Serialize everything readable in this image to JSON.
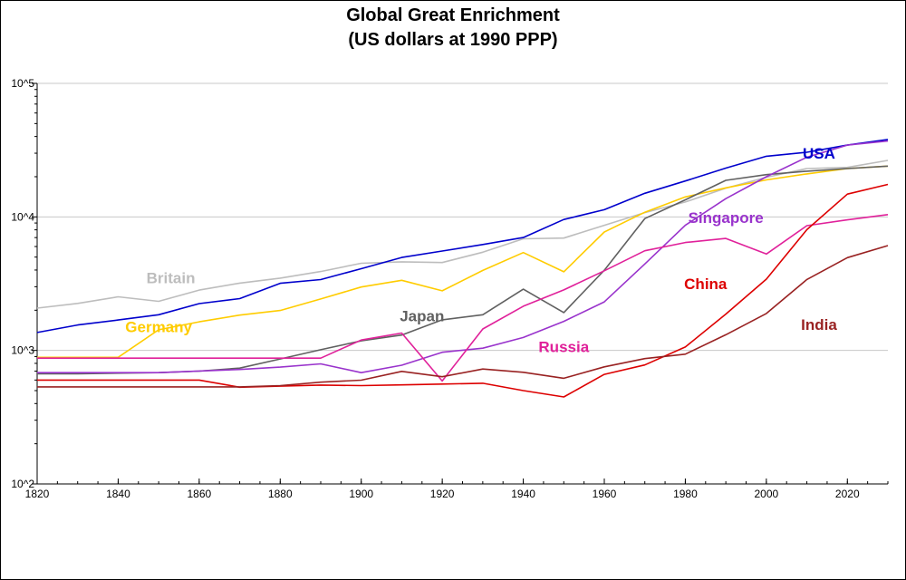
{
  "chart_data": {
    "type": "line",
    "title": "Global Great Enrichment",
    "subtitle": "(US dollars at 1990 PPP)",
    "yscale": "log",
    "ylim": [
      100,
      100000
    ],
    "xlim": [
      1820,
      2030
    ],
    "xticks": [
      1820,
      1840,
      1860,
      1880,
      1900,
      1920,
      1940,
      1960,
      1980,
      2000,
      2020
    ],
    "yticks": [
      {
        "value": 100,
        "label": "10^2"
      },
      {
        "value": 1000,
        "label": "10^3"
      },
      {
        "value": 10000,
        "label": "10^4"
      },
      {
        "value": 100000,
        "label": "10^5"
      }
    ],
    "grid": "horizontal at decades",
    "series": [
      {
        "name": "Britain",
        "color": "#bdbdbd",
        "label_year": 1853,
        "label_value": 3500,
        "points": [
          [
            1820,
            2074
          ],
          [
            1830,
            2250
          ],
          [
            1840,
            2521
          ],
          [
            1850,
            2330
          ],
          [
            1860,
            2830
          ],
          [
            1870,
            3190
          ],
          [
            1880,
            3477
          ],
          [
            1890,
            3900
          ],
          [
            1900,
            4492
          ],
          [
            1910,
            4611
          ],
          [
            1920,
            4548
          ],
          [
            1930,
            5441
          ],
          [
            1940,
            6856
          ],
          [
            1950,
            6939
          ],
          [
            1960,
            8645
          ],
          [
            1970,
            10767
          ],
          [
            1980,
            12931
          ],
          [
            1990,
            16430
          ],
          [
            2000,
            19817
          ],
          [
            2010,
            23000
          ],
          [
            2020,
            23500
          ],
          [
            2030,
            26500
          ]
        ]
      },
      {
        "name": "USA",
        "color": "#0000cc",
        "label_year": 2013,
        "label_value": 30000,
        "points": [
          [
            1820,
            1361
          ],
          [
            1830,
            1550
          ],
          [
            1840,
            1690
          ],
          [
            1850,
            1849
          ],
          [
            1860,
            2241
          ],
          [
            1870,
            2445
          ],
          [
            1880,
            3184
          ],
          [
            1890,
            3392
          ],
          [
            1900,
            4091
          ],
          [
            1910,
            4964
          ],
          [
            1920,
            5552
          ],
          [
            1930,
            6213
          ],
          [
            1940,
            7010
          ],
          [
            1950,
            9561
          ],
          [
            1960,
            11328
          ],
          [
            1970,
            15030
          ],
          [
            1980,
            18577
          ],
          [
            1990,
            23201
          ],
          [
            2000,
            28467
          ],
          [
            2010,
            30500
          ],
          [
            2020,
            34500
          ],
          [
            2030,
            38000
          ]
        ]
      },
      {
        "name": "Germany",
        "color": "#ffcc00",
        "label_year": 1850,
        "label_value": 1500,
        "points": [
          [
            1820,
            887
          ],
          [
            1840,
            887
          ],
          [
            1850,
            1428
          ],
          [
            1860,
            1639
          ],
          [
            1870,
            1839
          ],
          [
            1880,
            1991
          ],
          [
            1890,
            2428
          ],
          [
            1900,
            2985
          ],
          [
            1910,
            3348
          ],
          [
            1920,
            2796
          ],
          [
            1930,
            3973
          ],
          [
            1940,
            5403
          ],
          [
            1950,
            3881
          ],
          [
            1960,
            7705
          ],
          [
            1970,
            10839
          ],
          [
            1980,
            14114
          ],
          [
            1990,
            16500
          ],
          [
            2000,
            18944
          ],
          [
            2010,
            21000
          ],
          [
            2020,
            23000
          ],
          [
            2030,
            24000
          ]
        ]
      },
      {
        "name": "Japan",
        "color": "#606060",
        "label_year": 1915,
        "label_value": 1820,
        "points": [
          [
            1820,
            669
          ],
          [
            1830,
            669
          ],
          [
            1850,
            681
          ],
          [
            1860,
            700
          ],
          [
            1870,
            737
          ],
          [
            1880,
            863
          ],
          [
            1890,
            1012
          ],
          [
            1900,
            1180
          ],
          [
            1910,
            1304
          ],
          [
            1920,
            1696
          ],
          [
            1930,
            1850
          ],
          [
            1940,
            2874
          ],
          [
            1950,
            1921
          ],
          [
            1960,
            3986
          ],
          [
            1970,
            9714
          ],
          [
            1980,
            13428
          ],
          [
            1990,
            18789
          ],
          [
            2000,
            20738
          ],
          [
            2010,
            22000
          ],
          [
            2020,
            23000
          ],
          [
            2030,
            24000
          ]
        ]
      },
      {
        "name": "Singapore",
        "color": "#9933cc",
        "label_year": 1990,
        "label_value": 9900,
        "points": [
          [
            1820,
            682
          ],
          [
            1850,
            682
          ],
          [
            1870,
            720
          ],
          [
            1880,
            750
          ],
          [
            1890,
            793
          ],
          [
            1900,
            682
          ],
          [
            1910,
            775
          ],
          [
            1920,
            968
          ],
          [
            1930,
            1040
          ],
          [
            1940,
            1250
          ],
          [
            1950,
            1651
          ],
          [
            1960,
            2310
          ],
          [
            1970,
            4439
          ],
          [
            1980,
            8652
          ],
          [
            1990,
            13700
          ],
          [
            2000,
            20000
          ],
          [
            2010,
            28000
          ],
          [
            2020,
            34500
          ],
          [
            2030,
            37000
          ]
        ]
      },
      {
        "name": "Russia",
        "color": "#e0219a",
        "label_year": 1950,
        "label_value": 1070,
        "points": [
          [
            1820,
            875
          ],
          [
            1880,
            875
          ],
          [
            1890,
            875
          ],
          [
            1900,
            1196
          ],
          [
            1910,
            1349
          ],
          [
            1920,
            590
          ],
          [
            1930,
            1448
          ],
          [
            1940,
            2144
          ],
          [
            1950,
            2841
          ],
          [
            1960,
            3945
          ],
          [
            1970,
            5575
          ],
          [
            1980,
            6427
          ],
          [
            1990,
            6900
          ],
          [
            2000,
            5270
          ],
          [
            2010,
            8600
          ],
          [
            2020,
            9500
          ],
          [
            2030,
            10400
          ]
        ]
      },
      {
        "name": "China",
        "color": "#dd0000",
        "label_year": 1985,
        "label_value": 3150,
        "points": [
          [
            1820,
            600
          ],
          [
            1860,
            600
          ],
          [
            1870,
            530
          ],
          [
            1880,
            540
          ],
          [
            1890,
            550
          ],
          [
            1900,
            545
          ],
          [
            1910,
            552
          ],
          [
            1920,
            560
          ],
          [
            1930,
            568
          ],
          [
            1940,
            500
          ],
          [
            1950,
            448
          ],
          [
            1960,
            662
          ],
          [
            1970,
            778
          ],
          [
            1980,
            1061
          ],
          [
            1990,
            1871
          ],
          [
            2000,
            3421
          ],
          [
            2010,
            8032
          ],
          [
            2020,
            14800
          ],
          [
            2030,
            17500
          ]
        ]
      },
      {
        "name": "India",
        "color": "#992222",
        "label_year": 2013,
        "label_value": 1560,
        "points": [
          [
            1820,
            533
          ],
          [
            1870,
            533
          ],
          [
            1880,
            545
          ],
          [
            1890,
            578
          ],
          [
            1900,
            599
          ],
          [
            1910,
            697
          ],
          [
            1920,
            635
          ],
          [
            1930,
            726
          ],
          [
            1940,
            686
          ],
          [
            1950,
            619
          ],
          [
            1960,
            753
          ],
          [
            1970,
            868
          ],
          [
            1980,
            938
          ],
          [
            1990,
            1309
          ],
          [
            2000,
            1892
          ],
          [
            2010,
            3400
          ],
          [
            2020,
            4950
          ],
          [
            2030,
            6100
          ]
        ]
      }
    ]
  }
}
